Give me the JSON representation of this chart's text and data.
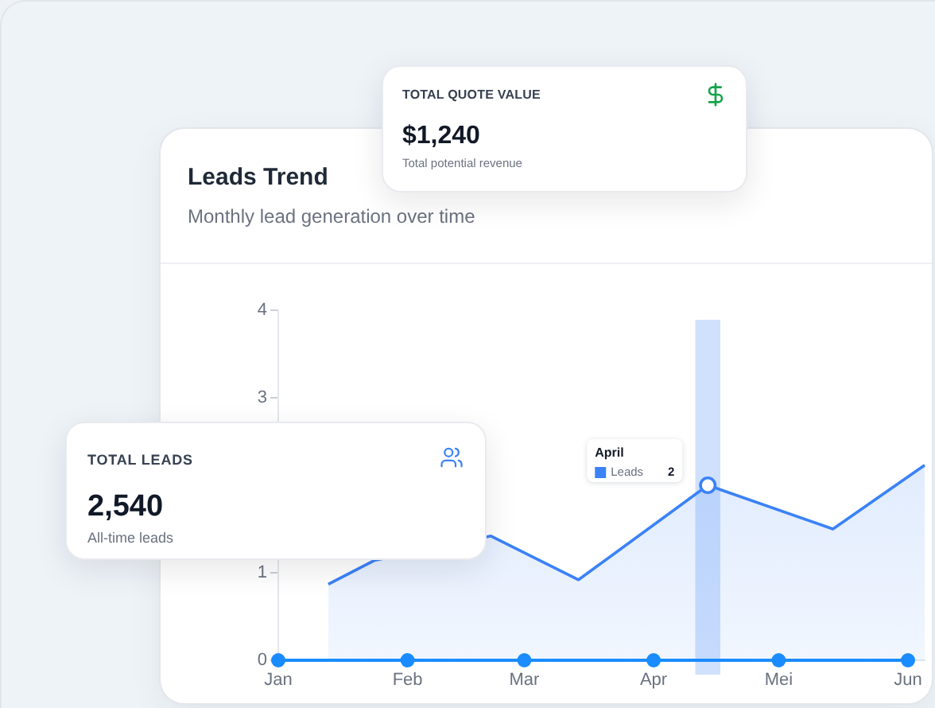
{
  "chart_data": [
    {
      "type": "line",
      "title": "Leads Trend",
      "subtitle": "Monthly lead generation over time",
      "xlim": [
        "--01-01",
        "--06-05"
      ],
      "xticks": [
        {
          "value": "--01-01",
          "label": "Jan"
        },
        {
          "value": "--02-01",
          "label": "Feb"
        },
        {
          "value": "--03-01",
          "label": "Mar"
        },
        {
          "value": "--04-01",
          "label": "Apr"
        },
        {
          "value": "--05-01",
          "label": "Mei"
        },
        {
          "value": "--06-01",
          "label": "Jun"
        }
      ],
      "ylim": [
        0,
        4
      ],
      "yticks": [
        0,
        1,
        3,
        4
      ],
      "series": [
        {
          "type": "area",
          "name": "Leads",
          "color": "#3b82f6",
          "x": [
            "--01-13",
            "--01-24",
            "--02-21",
            "--03-14",
            "--04-14",
            "--05-14",
            "--06-05"
          ],
          "values": [
            0.87,
            1.14,
            1.42,
            0.92,
            2,
            1.5,
            2.23
          ]
        },
        {
          "type": "line",
          "color": "#1a8cff",
          "marker": "circle",
          "x": [
            "--01-01",
            "--02-01",
            "--03-01",
            "--04-01",
            "--05-01",
            "--06-01"
          ],
          "values": [
            0,
            0,
            0,
            0,
            0,
            0
          ]
        }
      ],
      "bands": [
        {
          "axis": "x",
          "from": "--04-11",
          "to": "--04-17",
          "color": "#d0e1fd"
        }
      ],
      "annotations": [
        "April",
        "2"
      ]
    },
    {
      "type": "other",
      "title": "TOTAL QUOTE VALUE",
      "annotations": [
        "$1,240",
        "Total potential revenue"
      ]
    },
    {
      "type": "other",
      "title": "TOTAL LEADS",
      "annotations": [
        "2,540",
        "All-time leads"
      ]
    }
  ]
}
